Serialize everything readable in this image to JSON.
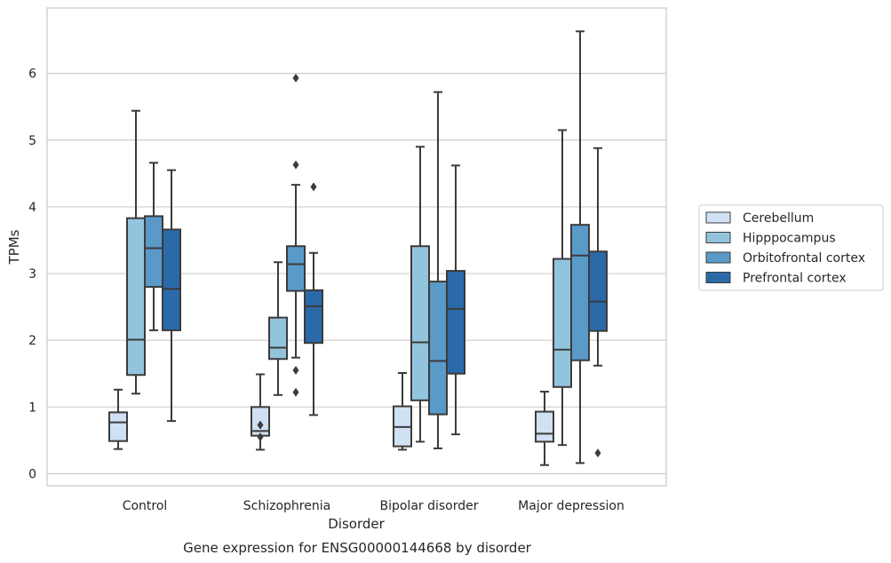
{
  "chart_data": {
    "type": "box",
    "caption": "Gene expression for ENSG00000144668 by disorder",
    "xlabel": "Disorder",
    "ylabel": "TPMs",
    "ylim": [
      -0.18,
      6.98
    ],
    "yticks": [
      0,
      1,
      2,
      3,
      4,
      5,
      6
    ],
    "grid": true,
    "legend_position": "right",
    "categories": [
      "Control",
      "Schizophrenia",
      "Bipolar disorder",
      "Major depression"
    ],
    "series": [
      {
        "name": "Cerebellum",
        "color": "#cfe1f2",
        "boxes": [
          {
            "whisker_low": 0.37,
            "q1": 0.49,
            "median": 0.77,
            "q3": 0.92,
            "whisker_high": 1.26,
            "outliers": []
          },
          {
            "whisker_low": 0.36,
            "q1": 0.57,
            "median": 0.64,
            "q3": 1.0,
            "whisker_high": 1.49,
            "outliers": [
              0.73,
              0.55
            ]
          },
          {
            "whisker_low": 0.36,
            "q1": 0.41,
            "median": 0.7,
            "q3": 1.01,
            "whisker_high": 1.51,
            "outliers": []
          },
          {
            "whisker_low": 0.13,
            "q1": 0.48,
            "median": 0.6,
            "q3": 0.93,
            "whisker_high": 1.23,
            "outliers": []
          }
        ]
      },
      {
        "name": "Hipppocampus",
        "color": "#93c4de",
        "boxes": [
          {
            "whisker_low": 1.2,
            "q1": 1.48,
            "median": 2.01,
            "q3": 3.83,
            "whisker_high": 5.44,
            "outliers": []
          },
          {
            "whisker_low": 1.18,
            "q1": 1.72,
            "median": 1.89,
            "q3": 2.34,
            "whisker_high": 3.17,
            "outliers": []
          },
          {
            "whisker_low": 0.48,
            "q1": 1.1,
            "median": 1.97,
            "q3": 3.41,
            "whisker_high": 4.9,
            "outliers": []
          },
          {
            "whisker_low": 0.43,
            "q1": 1.3,
            "median": 1.86,
            "q3": 3.22,
            "whisker_high": 5.15,
            "outliers": []
          }
        ]
      },
      {
        "name": "Orbitofrontal cortex",
        "color": "#5a9ac9",
        "boxes": [
          {
            "whisker_low": 2.15,
            "q1": 2.8,
            "median": 3.38,
            "q3": 3.86,
            "whisker_high": 4.66,
            "outliers": []
          },
          {
            "whisker_low": 1.74,
            "q1": 2.74,
            "median": 3.14,
            "q3": 3.41,
            "whisker_high": 4.33,
            "outliers": [
              5.93,
              4.63,
              1.55,
              1.22
            ]
          },
          {
            "whisker_low": 0.38,
            "q1": 0.89,
            "median": 1.69,
            "q3": 2.88,
            "whisker_high": 5.72,
            "outliers": []
          },
          {
            "whisker_low": 0.16,
            "q1": 1.7,
            "median": 3.27,
            "q3": 3.73,
            "whisker_high": 6.63,
            "outliers": []
          }
        ]
      },
      {
        "name": "Prefrontal cortex",
        "color": "#2b6aa9",
        "boxes": [
          {
            "whisker_low": 0.79,
            "q1": 2.15,
            "median": 2.77,
            "q3": 3.66,
            "whisker_high": 4.55,
            "outliers": []
          },
          {
            "whisker_low": 0.88,
            "q1": 1.96,
            "median": 2.51,
            "q3": 2.75,
            "whisker_high": 3.31,
            "outliers": [
              4.3
            ]
          },
          {
            "whisker_low": 0.59,
            "q1": 1.5,
            "median": 2.47,
            "q3": 3.04,
            "whisker_high": 4.62,
            "outliers": []
          },
          {
            "whisker_low": 1.62,
            "q1": 2.14,
            "median": 2.58,
            "q3": 3.33,
            "whisker_high": 4.88,
            "outliers": [
              0.31
            ]
          }
        ]
      }
    ]
  }
}
